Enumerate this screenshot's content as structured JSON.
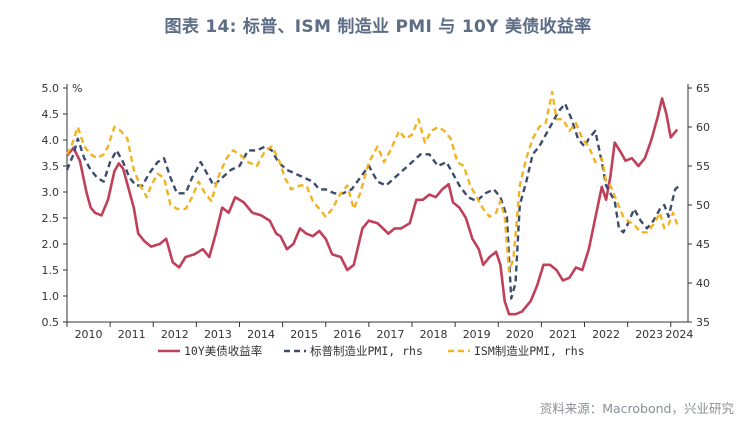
{
  "title": "图表 14: 标普、ISM 制造业 PMI 与 10Y 美债收益率",
  "source": "资料来源：Macrobond，兴业研究",
  "chart_data": {
    "type": "line",
    "left_axis": {
      "unit": "%",
      "min": 0.5,
      "max": 5.0,
      "ticks": [
        0.5,
        1.0,
        1.5,
        2.0,
        2.5,
        3.0,
        3.5,
        4.0,
        4.5,
        5.0
      ],
      "tick_labels": [
        "0.5",
        "1.0",
        "1.5",
        "2.0",
        "2.5",
        "3.0",
        "3.5",
        "4.0",
        "4.5",
        "5.0"
      ]
    },
    "right_axis": {
      "min": 35,
      "max": 65,
      "ticks": [
        35,
        40,
        45,
        50,
        55,
        60,
        65
      ],
      "tick_labels": [
        "35",
        "40",
        "45",
        "50",
        "55",
        "60",
        "65"
      ]
    },
    "x_axis": {
      "min": 2010.0,
      "max": 2024.4,
      "year_labels": [
        "2010",
        "2011",
        "2012",
        "2013",
        "2014",
        "2015",
        "2016",
        "2017",
        "2018",
        "2019",
        "2020",
        "2021",
        "2022",
        "2023",
        "2024"
      ]
    },
    "legend_position": "bottom",
    "series": [
      {
        "name": "10Y美债收益率",
        "axis": "left",
        "color": "#c0405a",
        "style": "solid",
        "points": [
          [
            2010.0,
            3.7
          ],
          [
            2010.15,
            3.85
          ],
          [
            2010.3,
            3.6
          ],
          [
            2010.45,
            3.0
          ],
          [
            2010.55,
            2.7
          ],
          [
            2010.65,
            2.6
          ],
          [
            2010.8,
            2.55
          ],
          [
            2010.95,
            2.85
          ],
          [
            2011.1,
            3.4
          ],
          [
            2011.2,
            3.55
          ],
          [
            2011.3,
            3.45
          ],
          [
            2011.45,
            3.0
          ],
          [
            2011.55,
            2.7
          ],
          [
            2011.65,
            2.2
          ],
          [
            2011.8,
            2.05
          ],
          [
            2011.95,
            1.95
          ],
          [
            2012.15,
            2.0
          ],
          [
            2012.3,
            2.1
          ],
          [
            2012.45,
            1.65
          ],
          [
            2012.6,
            1.55
          ],
          [
            2012.75,
            1.75
          ],
          [
            2012.95,
            1.8
          ],
          [
            2013.15,
            1.9
          ],
          [
            2013.3,
            1.75
          ],
          [
            2013.45,
            2.2
          ],
          [
            2013.6,
            2.7
          ],
          [
            2013.75,
            2.6
          ],
          [
            2013.9,
            2.9
          ],
          [
            2014.1,
            2.8
          ],
          [
            2014.3,
            2.6
          ],
          [
            2014.5,
            2.55
          ],
          [
            2014.7,
            2.45
          ],
          [
            2014.85,
            2.2
          ],
          [
            2014.95,
            2.15
          ],
          [
            2015.1,
            1.9
          ],
          [
            2015.25,
            2.0
          ],
          [
            2015.4,
            2.3
          ],
          [
            2015.55,
            2.2
          ],
          [
            2015.7,
            2.15
          ],
          [
            2015.85,
            2.25
          ],
          [
            2016.0,
            2.1
          ],
          [
            2016.15,
            1.8
          ],
          [
            2016.35,
            1.75
          ],
          [
            2016.5,
            1.5
          ],
          [
            2016.65,
            1.6
          ],
          [
            2016.85,
            2.3
          ],
          [
            2017.0,
            2.45
          ],
          [
            2017.2,
            2.4
          ],
          [
            2017.45,
            2.2
          ],
          [
            2017.6,
            2.3
          ],
          [
            2017.75,
            2.3
          ],
          [
            2017.95,
            2.4
          ],
          [
            2018.1,
            2.85
          ],
          [
            2018.25,
            2.85
          ],
          [
            2018.4,
            2.95
          ],
          [
            2018.55,
            2.9
          ],
          [
            2018.7,
            3.05
          ],
          [
            2018.85,
            3.15
          ],
          [
            2018.95,
            2.8
          ],
          [
            2019.1,
            2.7
          ],
          [
            2019.25,
            2.5
          ],
          [
            2019.4,
            2.1
          ],
          [
            2019.55,
            1.9
          ],
          [
            2019.65,
            1.6
          ],
          [
            2019.8,
            1.75
          ],
          [
            2019.95,
            1.85
          ],
          [
            2020.05,
            1.6
          ],
          [
            2020.15,
            0.9
          ],
          [
            2020.25,
            0.65
          ],
          [
            2020.4,
            0.65
          ],
          [
            2020.55,
            0.7
          ],
          [
            2020.75,
            0.9
          ],
          [
            2020.9,
            1.2
          ],
          [
            2021.05,
            1.6
          ],
          [
            2021.2,
            1.6
          ],
          [
            2021.35,
            1.5
          ],
          [
            2021.5,
            1.3
          ],
          [
            2021.65,
            1.35
          ],
          [
            2021.8,
            1.55
          ],
          [
            2021.95,
            1.5
          ],
          [
            2022.1,
            1.9
          ],
          [
            2022.25,
            2.5
          ],
          [
            2022.4,
            3.1
          ],
          [
            2022.5,
            2.85
          ],
          [
            2022.6,
            3.3
          ],
          [
            2022.7,
            3.95
          ],
          [
            2022.85,
            3.75
          ],
          [
            2022.95,
            3.6
          ],
          [
            2023.1,
            3.65
          ],
          [
            2023.25,
            3.5
          ],
          [
            2023.4,
            3.65
          ],
          [
            2023.55,
            4.0
          ],
          [
            2023.7,
            4.45
          ],
          [
            2023.8,
            4.8
          ],
          [
            2023.9,
            4.5
          ],
          [
            2024.0,
            4.05
          ],
          [
            2024.15,
            4.2
          ]
        ]
      },
      {
        "name": "标普制造业PMI, rhs",
        "axis": "right",
        "color": "#3d4c6b",
        "style": "dashed",
        "points": [
          [
            2010.0,
            54.5
          ],
          [
            2010.15,
            56.5
          ],
          [
            2010.25,
            58.5
          ],
          [
            2010.4,
            56.0
          ],
          [
            2010.55,
            54.5
          ],
          [
            2010.7,
            53.5
          ],
          [
            2010.85,
            53.0
          ],
          [
            2011.0,
            55.5
          ],
          [
            2011.15,
            57.0
          ],
          [
            2011.3,
            55.5
          ],
          [
            2011.45,
            53.5
          ],
          [
            2011.6,
            52.5
          ],
          [
            2011.75,
            52.5
          ],
          [
            2011.9,
            54.0
          ],
          [
            2012.1,
            55.5
          ],
          [
            2012.25,
            56.0
          ],
          [
            2012.4,
            53.5
          ],
          [
            2012.55,
            51.5
          ],
          [
            2012.75,
            51.5
          ],
          [
            2012.9,
            53.5
          ],
          [
            2013.1,
            55.5
          ],
          [
            2013.25,
            54.0
          ],
          [
            2013.4,
            52.5
          ],
          [
            2013.6,
            53.5
          ],
          [
            2013.8,
            54.5
          ],
          [
            2014.0,
            55.0
          ],
          [
            2014.2,
            57.0
          ],
          [
            2014.4,
            57.0
          ],
          [
            2014.6,
            57.5
          ],
          [
            2014.75,
            57.0
          ],
          [
            2014.9,
            55.5
          ],
          [
            2015.1,
            54.5
          ],
          [
            2015.3,
            54.0
          ],
          [
            2015.5,
            53.5
          ],
          [
            2015.7,
            53.0
          ],
          [
            2015.85,
            52.0
          ],
          [
            2016.0,
            52.0
          ],
          [
            2016.2,
            51.5
          ],
          [
            2016.4,
            51.5
          ],
          [
            2016.6,
            52.0
          ],
          [
            2016.8,
            53.5
          ],
          [
            2017.0,
            55.0
          ],
          [
            2017.2,
            53.0
          ],
          [
            2017.4,
            52.5
          ],
          [
            2017.6,
            53.5
          ],
          [
            2017.8,
            54.5
          ],
          [
            2018.0,
            55.5
          ],
          [
            2018.2,
            56.5
          ],
          [
            2018.4,
            56.5
          ],
          [
            2018.6,
            55.0
          ],
          [
            2018.8,
            55.5
          ],
          [
            2018.95,
            54.0
          ],
          [
            2019.1,
            52.5
          ],
          [
            2019.3,
            51.0
          ],
          [
            2019.5,
            50.5
          ],
          [
            2019.7,
            51.5
          ],
          [
            2019.9,
            52.0
          ],
          [
            2020.05,
            51.0
          ],
          [
            2020.2,
            48.5
          ],
          [
            2020.3,
            38.0
          ],
          [
            2020.4,
            40.0
          ],
          [
            2020.5,
            50.0
          ],
          [
            2020.65,
            53.0
          ],
          [
            2020.8,
            56.5
          ],
          [
            2020.95,
            57.5
          ],
          [
            2021.1,
            59.0
          ],
          [
            2021.25,
            60.5
          ],
          [
            2021.4,
            62.0
          ],
          [
            2021.55,
            63.0
          ],
          [
            2021.7,
            61.0
          ],
          [
            2021.85,
            58.5
          ],
          [
            2022.0,
            57.5
          ],
          [
            2022.1,
            58.5
          ],
          [
            2022.25,
            59.5
          ],
          [
            2022.4,
            55.5
          ],
          [
            2022.5,
            52.5
          ],
          [
            2022.6,
            51.5
          ],
          [
            2022.7,
            50.5
          ],
          [
            2022.8,
            47.0
          ],
          [
            2022.9,
            46.5
          ],
          [
            2023.0,
            47.5
          ],
          [
            2023.15,
            49.5
          ],
          [
            2023.3,
            48.0
          ],
          [
            2023.45,
            47.0
          ],
          [
            2023.6,
            48.0
          ],
          [
            2023.75,
            49.5
          ],
          [
            2023.85,
            50.0
          ],
          [
            2023.95,
            48.5
          ],
          [
            2024.1,
            52.0
          ],
          [
            2024.2,
            52.5
          ]
        ]
      },
      {
        "name": "ISM制造业PMI, rhs",
        "axis": "right",
        "color": "#f0b323",
        "style": "dashed",
        "points": [
          [
            2010.0,
            56.5
          ],
          [
            2010.1,
            57.5
          ],
          [
            2010.25,
            60.0
          ],
          [
            2010.4,
            57.5
          ],
          [
            2010.55,
            56.5
          ],
          [
            2010.7,
            56.0
          ],
          [
            2010.85,
            56.5
          ],
          [
            2010.95,
            57.5
          ],
          [
            2011.1,
            60.0
          ],
          [
            2011.25,
            59.5
          ],
          [
            2011.4,
            58.5
          ],
          [
            2011.55,
            54.5
          ],
          [
            2011.7,
            52.5
          ],
          [
            2011.85,
            51.0
          ],
          [
            2011.95,
            52.5
          ],
          [
            2012.1,
            54.0
          ],
          [
            2012.25,
            53.5
          ],
          [
            2012.4,
            50.0
          ],
          [
            2012.55,
            49.5
          ],
          [
            2012.75,
            49.5
          ],
          [
            2012.9,
            51.0
          ],
          [
            2013.05,
            53.0
          ],
          [
            2013.2,
            51.5
          ],
          [
            2013.35,
            50.5
          ],
          [
            2013.5,
            53.5
          ],
          [
            2013.7,
            56.0
          ],
          [
            2013.85,
            57.0
          ],
          [
            2014.0,
            56.5
          ],
          [
            2014.2,
            55.5
          ],
          [
            2014.4,
            55.0
          ],
          [
            2014.6,
            57.0
          ],
          [
            2014.75,
            57.5
          ],
          [
            2014.9,
            56.0
          ],
          [
            2015.05,
            53.5
          ],
          [
            2015.2,
            52.0
          ],
          [
            2015.4,
            52.5
          ],
          [
            2015.55,
            52.5
          ],
          [
            2015.7,
            50.5
          ],
          [
            2015.85,
            49.5
          ],
          [
            2016.0,
            48.5
          ],
          [
            2016.15,
            49.5
          ],
          [
            2016.35,
            51.5
          ],
          [
            2016.5,
            52.5
          ],
          [
            2016.65,
            49.5
          ],
          [
            2016.8,
            51.5
          ],
          [
            2017.0,
            55.5
          ],
          [
            2017.2,
            57.5
          ],
          [
            2017.35,
            55.5
          ],
          [
            2017.5,
            57.0
          ],
          [
            2017.7,
            59.5
          ],
          [
            2017.85,
            58.5
          ],
          [
            2018.0,
            59.0
          ],
          [
            2018.15,
            61.0
          ],
          [
            2018.3,
            58.0
          ],
          [
            2018.45,
            59.5
          ],
          [
            2018.6,
            60.0
          ],
          [
            2018.75,
            59.5
          ],
          [
            2018.9,
            58.5
          ],
          [
            2019.05,
            55.5
          ],
          [
            2019.2,
            55.0
          ],
          [
            2019.35,
            52.5
          ],
          [
            2019.5,
            51.0
          ],
          [
            2019.65,
            49.5
          ],
          [
            2019.8,
            48.5
          ],
          [
            2019.95,
            49.0
          ],
          [
            2020.05,
            50.5
          ],
          [
            2020.15,
            48.5
          ],
          [
            2020.25,
            41.5
          ],
          [
            2020.35,
            43.0
          ],
          [
            2020.5,
            52.5
          ],
          [
            2020.65,
            56.0
          ],
          [
            2020.8,
            58.5
          ],
          [
            2020.95,
            60.0
          ],
          [
            2021.1,
            60.5
          ],
          [
            2021.25,
            64.5
          ],
          [
            2021.35,
            61.0
          ],
          [
            2021.5,
            61.0
          ],
          [
            2021.65,
            59.5
          ],
          [
            2021.8,
            60.5
          ],
          [
            2021.95,
            58.5
          ],
          [
            2022.1,
            57.5
          ],
          [
            2022.25,
            55.5
          ],
          [
            2022.4,
            56.0
          ],
          [
            2022.5,
            53.0
          ],
          [
            2022.6,
            52.5
          ],
          [
            2022.75,
            50.5
          ],
          [
            2022.9,
            48.5
          ],
          [
            2023.0,
            48.0
          ],
          [
            2023.15,
            47.5
          ],
          [
            2023.3,
            46.5
          ],
          [
            2023.45,
            46.5
          ],
          [
            2023.6,
            47.5
          ],
          [
            2023.75,
            49.0
          ],
          [
            2023.85,
            47.0
          ],
          [
            2023.95,
            47.5
          ],
          [
            2024.05,
            49.0
          ],
          [
            2024.15,
            47.5
          ]
        ]
      }
    ]
  }
}
